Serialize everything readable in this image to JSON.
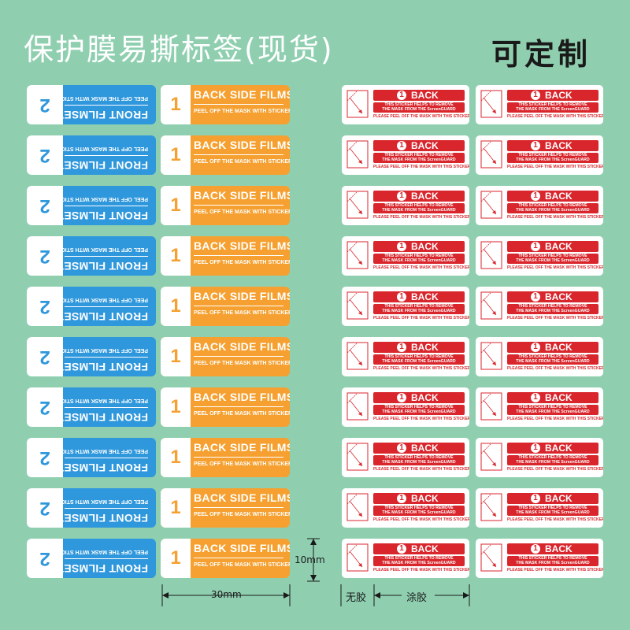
{
  "header": {
    "title": "保护膜易撕标签(现货)",
    "custom": "可定制"
  },
  "left_labels": {
    "front_main": "FRONT FILMSET",
    "front_sub": "PEEL OFF THE MASK WITH STICKER",
    "front_num": "2",
    "back_main": "BACK SIDE FILMSET",
    "back_sub": "PEEL OFF THE MASK WITH STICKER",
    "back_num": "1",
    "front_color": "#2f97dc",
    "back_color": "#f5a030",
    "rows": 10
  },
  "right_labels": {
    "num": "1",
    "back": "BACK",
    "line1": "THIS STICKER HELPS TO REMOVE",
    "line2": "THE MASK FROM THE ScreenGUARD",
    "tail": "PLEASE PEEL OFF THE MASK WITH THIS STICKER",
    "color": "#d8262c",
    "rows": 10,
    "cols": 2
  },
  "dimensions": {
    "height": "10mm",
    "width": "30mm",
    "no_glue": "无胶",
    "glue": "涂胶"
  }
}
